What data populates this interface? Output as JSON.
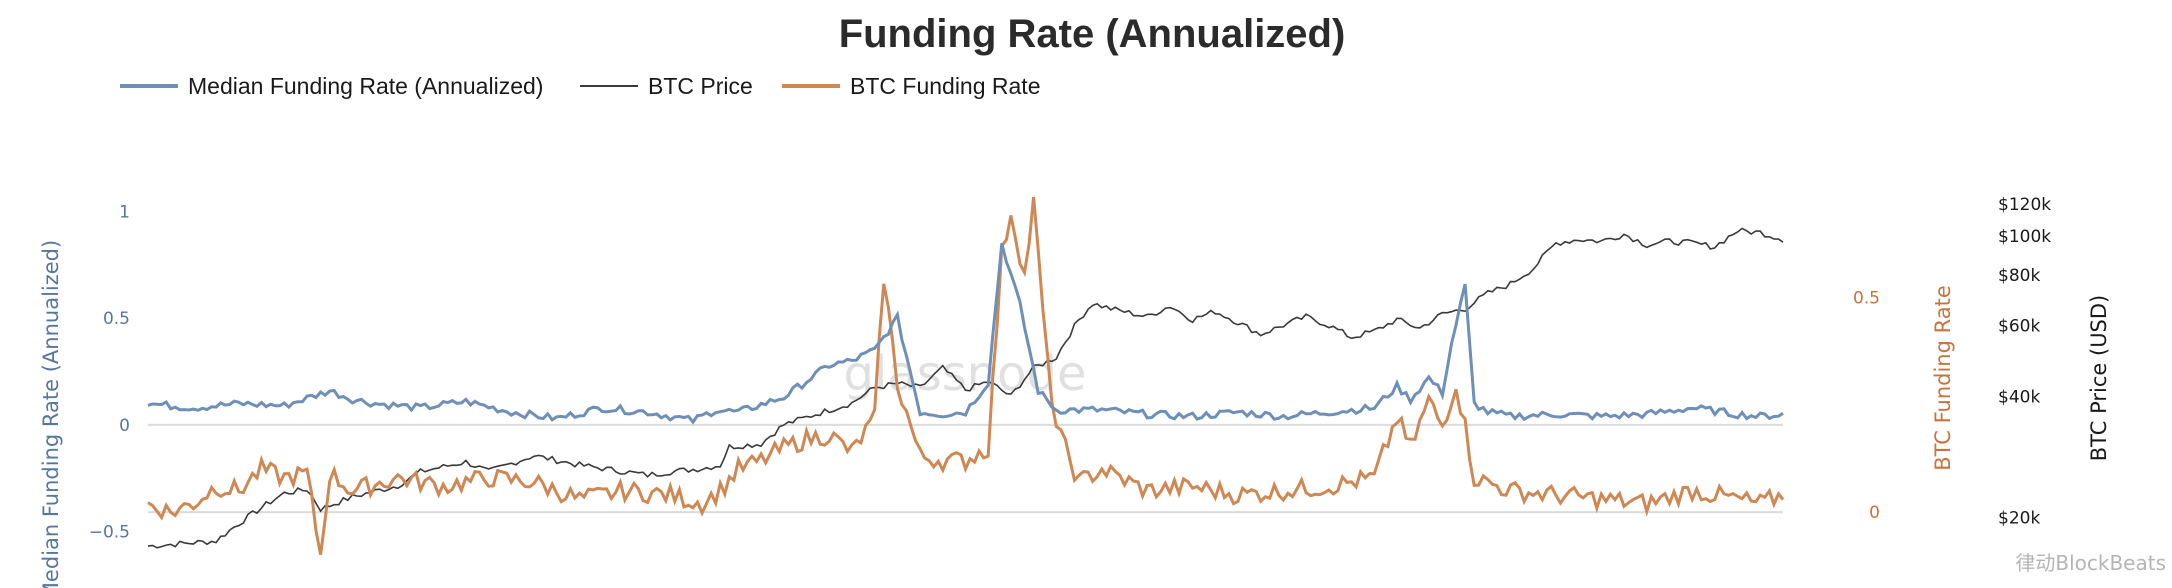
{
  "chart_data": {
    "type": "line",
    "title": "Funding Rate (Annualized)",
    "watermark": "glassnode",
    "source_label": "律动BlockBeats",
    "colors": {
      "median": "#6e8fb8",
      "btc_price": "#3a3a3a",
      "btc_funding": "#cf8753",
      "zero_line": "#dcdcdc"
    },
    "legend": [
      {
        "name": "Median Funding Rate (Annualized)",
        "color": "#6e8fb8"
      },
      {
        "name": "BTC Price",
        "color": "#3a3a3a"
      },
      {
        "name": "BTC Funding Rate",
        "color": "#cf8753"
      }
    ],
    "axes": {
      "left": {
        "label": "Median Funding Rate (Annualized)",
        "min": -0.67,
        "max": 1.1,
        "ticks": [
          {
            "v": 1,
            "label": "1"
          },
          {
            "v": 0.5,
            "label": "0.5"
          },
          {
            "v": 0,
            "label": "0"
          },
          {
            "v": -0.5,
            "label": "−0.5"
          }
        ]
      },
      "mid": {
        "label": "BTC Funding Rate",
        "min": -0.13,
        "max": 0.75,
        "ticks": [
          {
            "v": 0.5,
            "label": "0.5"
          },
          {
            "v": 0,
            "label": "0"
          }
        ]
      },
      "right": {
        "label": "BTC Price (USD)",
        "scale": "log",
        "min": 15000,
        "max": 130000,
        "ticks": [
          {
            "v": 120000,
            "label": "$120k"
          },
          {
            "v": 100000,
            "label": "$100k"
          },
          {
            "v": 80000,
            "label": "$80k"
          },
          {
            "v": 60000,
            "label": "$60k"
          },
          {
            "v": 40000,
            "label": "$40k"
          },
          {
            "v": 20000,
            "label": "$20k"
          }
        ]
      }
    },
    "n_points": 360,
    "btc_price_anchors": [
      [
        0,
        17000
      ],
      [
        15,
        17500
      ],
      [
        30,
        23000
      ],
      [
        35,
        23500
      ],
      [
        38,
        21000
      ],
      [
        45,
        22500
      ],
      [
        55,
        24000
      ],
      [
        60,
        26000
      ],
      [
        70,
        27500
      ],
      [
        75,
        26000
      ],
      [
        85,
        28500
      ],
      [
        95,
        27000
      ],
      [
        100,
        26500
      ],
      [
        105,
        26000
      ],
      [
        110,
        25500
      ],
      [
        115,
        26000
      ],
      [
        122,
        26500
      ],
      [
        126,
        27000
      ],
      [
        128,
        30000
      ],
      [
        135,
        30500
      ],
      [
        140,
        34000
      ],
      [
        145,
        35500
      ],
      [
        150,
        37000
      ],
      [
        155,
        38500
      ],
      [
        160,
        42000
      ],
      [
        165,
        43000
      ],
      [
        170,
        42000
      ],
      [
        175,
        47000
      ],
      [
        180,
        41500
      ],
      [
        185,
        43500
      ],
      [
        190,
        40000
      ],
      [
        195,
        47000
      ],
      [
        200,
        50000
      ],
      [
        205,
        62000
      ],
      [
        208,
        68000
      ],
      [
        212,
        66000
      ],
      [
        220,
        63000
      ],
      [
        225,
        67000
      ],
      [
        230,
        62000
      ],
      [
        235,
        65000
      ],
      [
        245,
        57000
      ],
      [
        255,
        63000
      ],
      [
        260,
        60000
      ],
      [
        265,
        56000
      ],
      [
        270,
        58000
      ],
      [
        275,
        62000
      ],
      [
        280,
        59000
      ],
      [
        285,
        64000
      ],
      [
        290,
        66000
      ],
      [
        295,
        72000
      ],
      [
        300,
        76000
      ],
      [
        305,
        83000
      ],
      [
        310,
        96000
      ],
      [
        315,
        98000
      ],
      [
        320,
        97000
      ],
      [
        325,
        101000
      ],
      [
        330,
        95000
      ],
      [
        335,
        97000
      ],
      [
        340,
        96000
      ],
      [
        345,
        94000
      ],
      [
        350,
        103000
      ],
      [
        355,
        102000
      ],
      [
        360,
        98000
      ]
    ],
    "median_anchors": [
      [
        0,
        0.1
      ],
      [
        10,
        0.08
      ],
      [
        20,
        0.1
      ],
      [
        30,
        0.09
      ],
      [
        40,
        0.16
      ],
      [
        45,
        0.12
      ],
      [
        50,
        0.1
      ],
      [
        60,
        0.08
      ],
      [
        70,
        0.11
      ],
      [
        80,
        0.06
      ],
      [
        90,
        0.03
      ],
      [
        100,
        0.08
      ],
      [
        110,
        0.06
      ],
      [
        120,
        0.02
      ],
      [
        125,
        0.07
      ],
      [
        130,
        0.06
      ],
      [
        140,
        0.13
      ],
      [
        150,
        0.28
      ],
      [
        155,
        0.3
      ],
      [
        160,
        0.35
      ],
      [
        165,
        0.5
      ],
      [
        170,
        0.06
      ],
      [
        175,
        0.05
      ],
      [
        180,
        0.06
      ],
      [
        185,
        0.2
      ],
      [
        188,
        0.85
      ],
      [
        192,
        0.56
      ],
      [
        196,
        0.16
      ],
      [
        200,
        0.07
      ],
      [
        210,
        0.07
      ],
      [
        220,
        0.05
      ],
      [
        230,
        0.04
      ],
      [
        240,
        0.06
      ],
      [
        250,
        0.04
      ],
      [
        260,
        0.06
      ],
      [
        270,
        0.08
      ],
      [
        275,
        0.18
      ],
      [
        278,
        0.12
      ],
      [
        282,
        0.22
      ],
      [
        285,
        0.15
      ],
      [
        287,
        0.38
      ],
      [
        290,
        0.65
      ],
      [
        292,
        0.1
      ],
      [
        295,
        0.06
      ],
      [
        300,
        0.04
      ],
      [
        310,
        0.05
      ],
      [
        320,
        0.04
      ],
      [
        330,
        0.05
      ],
      [
        340,
        0.08
      ],
      [
        350,
        0.05
      ],
      [
        355,
        0.04
      ],
      [
        360,
        0.05
      ]
    ],
    "funding_anchors": [
      [
        0,
        0.02
      ],
      [
        5,
        0.0
      ],
      [
        10,
        0.02
      ],
      [
        15,
        0.06
      ],
      [
        20,
        0.05
      ],
      [
        25,
        0.1
      ],
      [
        30,
        0.08
      ],
      [
        35,
        0.09
      ],
      [
        38,
        -0.1
      ],
      [
        40,
        0.09
      ],
      [
        45,
        0.05
      ],
      [
        55,
        0.08
      ],
      [
        65,
        0.06
      ],
      [
        75,
        0.08
      ],
      [
        85,
        0.07
      ],
      [
        95,
        0.03
      ],
      [
        105,
        0.05
      ],
      [
        115,
        0.04
      ],
      [
        122,
        0.02
      ],
      [
        126,
        0.05
      ],
      [
        130,
        0.1
      ],
      [
        135,
        0.12
      ],
      [
        140,
        0.15
      ],
      [
        145,
        0.17
      ],
      [
        150,
        0.18
      ],
      [
        155,
        0.14
      ],
      [
        160,
        0.22
      ],
      [
        162,
        0.55
      ],
      [
        165,
        0.3
      ],
      [
        170,
        0.13
      ],
      [
        175,
        0.12
      ],
      [
        180,
        0.12
      ],
      [
        185,
        0.15
      ],
      [
        188,
        0.6
      ],
      [
        190,
        0.7
      ],
      [
        193,
        0.55
      ],
      [
        195,
        0.72
      ],
      [
        198,
        0.35
      ],
      [
        200,
        0.2
      ],
      [
        205,
        0.07
      ],
      [
        210,
        0.1
      ],
      [
        220,
        0.05
      ],
      [
        230,
        0.06
      ],
      [
        240,
        0.04
      ],
      [
        250,
        0.05
      ],
      [
        260,
        0.06
      ],
      [
        270,
        0.08
      ],
      [
        275,
        0.22
      ],
      [
        278,
        0.15
      ],
      [
        282,
        0.26
      ],
      [
        285,
        0.2
      ],
      [
        288,
        0.3
      ],
      [
        290,
        0.2
      ],
      [
        292,
        0.08
      ],
      [
        300,
        0.05
      ],
      [
        310,
        0.04
      ],
      [
        320,
        0.03
      ],
      [
        330,
        0.02
      ],
      [
        340,
        0.05
      ],
      [
        350,
        0.03
      ],
      [
        355,
        0.02
      ],
      [
        360,
        0.04
      ]
    ]
  }
}
